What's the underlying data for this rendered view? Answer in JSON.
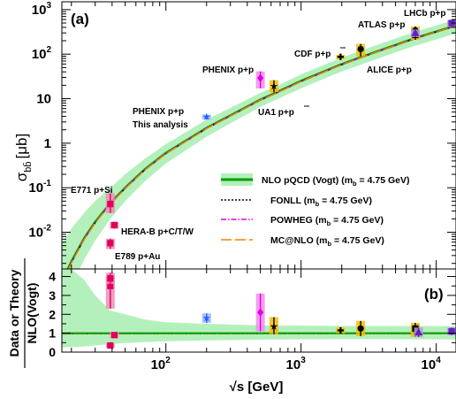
{
  "chart_data": [
    {
      "type": "line",
      "panel_label": "(a)",
      "ylabel_main": "σ",
      "ylabel_sub": "bb̄",
      "ylabel_unit": "[μb]",
      "x_scale": "log",
      "y_scale": "log",
      "xlim": [
        17,
        14000
      ],
      "ylim": [
        0.0015,
        1500
      ],
      "yticks": [
        {
          "label_base": "10",
          "label_exp": "-2",
          "value": 0.01
        },
        {
          "label_base": "10",
          "label_exp": "-1",
          "value": 0.1
        },
        {
          "label_base": "1",
          "label_exp": "",
          "value": 1
        },
        {
          "label_base": "10",
          "label_exp": "",
          "value": 10
        },
        {
          "label_base": "10",
          "label_exp": "2",
          "value": 100
        },
        {
          "label_base": "10",
          "label_exp": "3",
          "value": 1000
        }
      ],
      "grid": false,
      "legend_position": "right-middle",
      "series": [
        {
          "name": "NLO pQCD (Vogt) (m_b = 4.75 GeV)",
          "name_parts": [
            "NLO pQCD (Vogt) (m",
            "b",
            " = 4.75 GeV)"
          ],
          "color": "#00a000",
          "band_color": "#b4f0bc",
          "style": "solid",
          "x": [
            17,
            20,
            25,
            30,
            38.8,
            50,
            70,
            100,
            200,
            300,
            500,
            630,
            1000,
            1960,
            2760,
            5000,
            7000,
            10000,
            14000
          ],
          "y": [
            0.00077,
            0.0022,
            0.0075,
            0.017,
            0.045,
            0.1,
            0.26,
            0.6,
            2.2,
            4.2,
            9.5,
            13,
            25,
            58,
            85,
            160,
            230,
            320,
            440
          ],
          "band_low": [
            0.00018,
            0.0006,
            0.0025,
            0.0065,
            0.02,
            0.05,
            0.14,
            0.35,
            1.4,
            2.8,
            6.5,
            9,
            17,
            40,
            58,
            110,
            155,
            215,
            290
          ],
          "band_high": [
            0.0055,
            0.012,
            0.028,
            0.05,
            0.1,
            0.2,
            0.45,
            0.95,
            3.4,
            6.2,
            13.5,
            18,
            35,
            82,
            120,
            225,
            320,
            440,
            600
          ]
        },
        {
          "name": "FONLL (m_b = 4.75 GeV)",
          "name_parts": [
            "FONLL (m",
            "b",
            " = 4.75 GeV)"
          ],
          "color": "#000000",
          "style": "dotted",
          "x": [
            17,
            20,
            25,
            30,
            38.8,
            50,
            70,
            100,
            200,
            300,
            500,
            630,
            1000,
            1960,
            2760,
            5000,
            7000,
            10000,
            14000
          ],
          "y": [
            0.00075,
            0.0021,
            0.0072,
            0.0165,
            0.044,
            0.098,
            0.255,
            0.59,
            2.15,
            4.1,
            9.3,
            12.7,
            24.5,
            57,
            84,
            158,
            228,
            318,
            437
          ]
        },
        {
          "name": "POWHEG (m_b = 4.75 GeV)",
          "name_parts": [
            "POWHEG (m",
            "b",
            " = 4.75 GeV)"
          ],
          "color": "#e000e0",
          "style": "dashdot",
          "x": [
            17,
            20,
            25,
            30,
            38.8,
            50,
            70,
            100,
            200,
            300,
            500,
            630,
            1000,
            1960,
            2760,
            5000,
            7000,
            10000,
            14000
          ],
          "y": [
            0.00076,
            0.0021,
            0.0073,
            0.0166,
            0.044,
            0.099,
            0.257,
            0.595,
            2.17,
            4.15,
            9.4,
            12.8,
            24.7,
            57.5,
            84.5,
            159,
            229,
            319,
            438
          ]
        },
        {
          "name": "MC@NLO (m_b = 4.75 GeV)",
          "name_parts": [
            "MC@NLO (m",
            "b",
            " = 4.75 GeV)"
          ],
          "color": "#f08000",
          "style": "longdash",
          "x": [
            17,
            20,
            25,
            30,
            38.8,
            50,
            70,
            100,
            200,
            300,
            500,
            630,
            1000,
            1960,
            2760,
            5000,
            7000,
            10000,
            14000
          ],
          "y": [
            0.00074,
            0.00205,
            0.0071,
            0.0163,
            0.043,
            0.097,
            0.253,
            0.585,
            2.13,
            4.08,
            9.25,
            12.6,
            24.3,
            56.5,
            83.5,
            157,
            227,
            316,
            435
          ]
        }
      ],
      "data_points": [
        {
          "label": "E771 p+Si",
          "x": 38.8,
          "y": 0.043,
          "err_low": 0.016,
          "err_high": 0.032,
          "color": "#e0005a",
          "marker": "square"
        },
        {
          "label": "HERA-B p+C/T/W",
          "x": 41.6,
          "y": 0.0145,
          "err_low": 0.0025,
          "err_high": 0.0025,
          "color": "#e0005a",
          "marker": "square"
        },
        {
          "label": "E789 p+Au",
          "x": 38.8,
          "y": 0.0057,
          "err_low": 0.0015,
          "err_high": 0.0015,
          "color": "#e0005a",
          "marker": "square"
        },
        {
          "label": "PHENIX p+p This analysis",
          "x": 200,
          "y": 3.9,
          "err_low": 0.5,
          "err_high": 0.5,
          "color": "#2060ff",
          "marker": "star"
        },
        {
          "label": "PHENIX p+p",
          "x": 500,
          "y": 29,
          "err_low": 12,
          "err_high": 12,
          "color": "#e000e0",
          "marker": "diamond"
        },
        {
          "label": "UA1 p+p̄",
          "x": 630,
          "y": 19,
          "err_low": 5,
          "err_high": 7,
          "color": "#000000",
          "marker": "star"
        },
        {
          "label": "CDF p+p̄",
          "x": 1960,
          "y": 87,
          "err_low": 10,
          "err_high": 10,
          "color": "#000000",
          "marker": "cross"
        },
        {
          "label": "ALICE p+p",
          "x": 2760,
          "y": 130,
          "err_low": 40,
          "err_high": 40,
          "color": "#000000",
          "marker": "circle"
        },
        {
          "label": "ATLAS p+p",
          "x": 7000,
          "y": 270,
          "err_low": 60,
          "err_high": 60,
          "color": "#000000",
          "marker": "square"
        },
        {
          "label": "LHCb p+p",
          "x": 7000,
          "y": 340,
          "err_low": 80,
          "err_high": 80,
          "color": "#000000",
          "marker": "circle"
        },
        {
          "label": "",
          "x": 7000,
          "y": 300,
          "err_low": 60,
          "err_high": 60,
          "color": "#6020c0",
          "marker": "triangle"
        },
        {
          "label": "",
          "x": 13000,
          "y": 500,
          "err_low": 80,
          "err_high": 80,
          "color": "#6020c0",
          "marker": "square"
        }
      ]
    },
    {
      "type": "line",
      "panel_label": "(b)",
      "ylabel_line1": "Data or Theory",
      "ylabel_line2": "NLO(Vogt)",
      "xlabel": "√s [GeV]",
      "x_scale": "log",
      "y_scale": "linear",
      "xlim": [
        17,
        14000
      ],
      "ylim": [
        0,
        4.4
      ],
      "yticks": [
        0,
        1,
        2,
        3,
        4
      ],
      "xticks": [
        {
          "label_base": "10",
          "label_exp": "2",
          "value": 100
        },
        {
          "label_base": "10",
          "label_exp": "3",
          "value": 1000
        },
        {
          "label_base": "10",
          "label_exp": "4",
          "value": 10000
        }
      ],
      "grid": false,
      "reference_line": {
        "y": 1,
        "color": "#00a000"
      },
      "band": {
        "x": [
          17,
          20,
          25,
          30,
          38.8,
          50,
          70,
          100,
          200,
          500,
          1000,
          3000,
          7000,
          14000
        ],
        "low": [
          0.25,
          0.27,
          0.3,
          0.35,
          0.42,
          0.48,
          0.53,
          0.57,
          0.62,
          0.66,
          0.68,
          0.69,
          0.68,
          0.67
        ],
        "high": [
          4.4,
          4.4,
          3.8,
          3.0,
          2.2,
          2.0,
          1.72,
          1.58,
          1.5,
          1.42,
          1.4,
          1.38,
          1.38,
          1.37
        ],
        "color": "#b4f0bc"
      },
      "ratio_curves": [
        {
          "name": "FONLL",
          "color": "#000000",
          "style": "dotted",
          "x": [
            17,
            40,
            100,
            1000,
            14000
          ],
          "y": [
            0.97,
            0.98,
            0.98,
            0.98,
            0.99
          ]
        },
        {
          "name": "POWHEG",
          "color": "#e000e0",
          "style": "dashdot",
          "x": [
            17,
            40,
            100,
            1000,
            14000
          ],
          "y": [
            0.99,
            0.985,
            0.99,
            0.99,
            0.995
          ]
        },
        {
          "name": "MC@NLO",
          "color": "#f08000",
          "style": "longdash",
          "x": [
            17,
            40,
            100,
            1000,
            14000
          ],
          "y": [
            0.96,
            0.97,
            0.975,
            0.975,
            0.98
          ]
        }
      ],
      "ratio_points": [
        {
          "x": 38.8,
          "y": 3.5,
          "err_low": 1.2,
          "err_high": 0.5,
          "color": "#e0005a",
          "marker": "square"
        },
        {
          "x": 38.8,
          "y": 3.9,
          "err_low": 0.3,
          "err_high": 0.3,
          "color": "#e0005a",
          "marker": "square"
        },
        {
          "x": 41.6,
          "y": 0.9,
          "err_low": 0.15,
          "err_high": 0.15,
          "color": "#e0005a",
          "marker": "square"
        },
        {
          "x": 38.8,
          "y": 0.35,
          "err_low": 0.1,
          "err_high": 0.1,
          "color": "#e0005a",
          "marker": "square"
        },
        {
          "x": 200,
          "y": 1.8,
          "err_low": 0.25,
          "err_high": 0.25,
          "color": "#2060ff",
          "marker": "star"
        },
        {
          "x": 500,
          "y": 2.1,
          "err_low": 1.0,
          "err_high": 1.0,
          "color": "#e000e0",
          "marker": "diamond"
        },
        {
          "x": 630,
          "y": 1.35,
          "err_low": 0.4,
          "err_high": 0.5,
          "color": "#000000",
          "marker": "star"
        },
        {
          "x": 1960,
          "y": 1.15,
          "err_low": 0.15,
          "err_high": 0.15,
          "color": "#000000",
          "marker": "cross"
        },
        {
          "x": 2760,
          "y": 1.25,
          "err_low": 0.4,
          "err_high": 0.4,
          "color": "#000000",
          "marker": "circle"
        },
        {
          "x": 7000,
          "y": 1.1,
          "err_low": 0.3,
          "err_high": 0.3,
          "color": "#000000",
          "marker": "circle"
        },
        {
          "x": 7000,
          "y": 1.25,
          "err_low": 0.3,
          "err_high": 0.3,
          "color": "#000000",
          "marker": "square"
        },
        {
          "x": 7400,
          "y": 1.05,
          "err_low": 0.25,
          "err_high": 0.25,
          "color": "#6020c0",
          "marker": "triangle"
        },
        {
          "x": 13000,
          "y": 1.1,
          "err_low": 0.2,
          "err_high": 0.2,
          "color": "#6020c0",
          "marker": "square"
        }
      ]
    }
  ],
  "point_labels": {
    "e771": "E771 p+Si",
    "herab": "HERA-B p+C/T/W",
    "e789": "E789 p+Au",
    "phenix_this_1": "PHENIX p+p",
    "phenix_this_2": "This analysis",
    "phenix500": "PHENIX p+p",
    "ua1": "UA1 p+p",
    "cdf": "CDF p+p",
    "alice": "ALICE p+p",
    "atlas": "ATLAS p+p",
    "lhcb": "LHCb p+p"
  }
}
